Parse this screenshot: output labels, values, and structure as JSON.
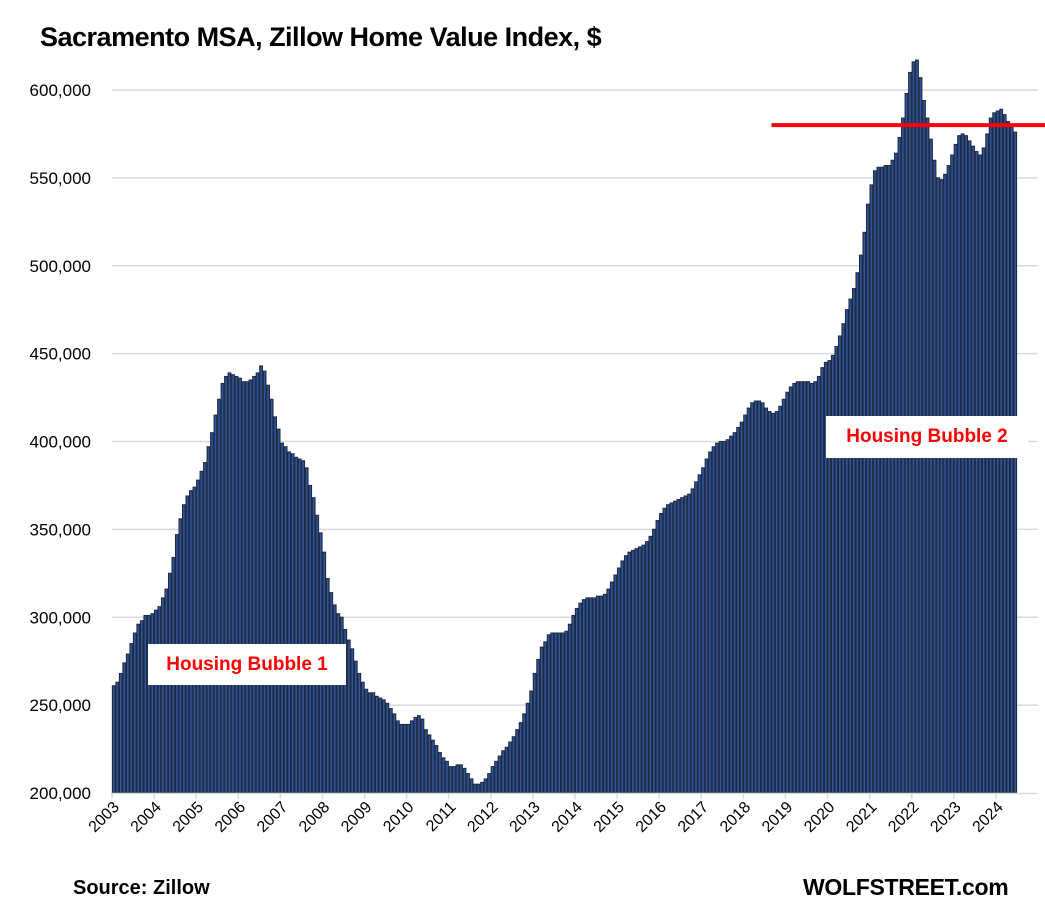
{
  "chart_data": {
    "type": "bar",
    "title": "Sacramento MSA, Zillow Home Value Index, $",
    "xlabel": "",
    "ylabel": "",
    "ylim": [
      200000,
      620000
    ],
    "grid": true,
    "yticks": [
      200000,
      250000,
      300000,
      350000,
      400000,
      450000,
      500000,
      550000,
      600000
    ],
    "ytick_labels": [
      "200,000",
      "250,000",
      "300,000",
      "350,000",
      "400,000",
      "450,000",
      "500,000",
      "550,000",
      "600,000"
    ],
    "xtick_labels": [
      "2003",
      "2004",
      "2005",
      "2006",
      "2007",
      "2008",
      "2009",
      "2010",
      "2011",
      "2012",
      "2013",
      "2014",
      "2015",
      "2016",
      "2017",
      "2018",
      "2019",
      "2020",
      "2021",
      "2022",
      "2023",
      "2024"
    ],
    "start": "2003-01",
    "frequency": "monthly",
    "series": [
      {
        "name": "Zillow Home Value Index",
        "color": "#2f5597",
        "edge_color": "#1f2a44",
        "values": [
          261000,
          263000,
          268000,
          274000,
          279000,
          285000,
          291000,
          296000,
          298000,
          301000,
          301000,
          302000,
          304000,
          306000,
          311000,
          316000,
          325000,
          334000,
          347000,
          356000,
          364000,
          369000,
          372000,
          374000,
          378000,
          383000,
          388000,
          397000,
          405000,
          415000,
          424000,
          433000,
          437000,
          439000,
          438000,
          437000,
          436000,
          434000,
          434000,
          435000,
          437000,
          439000,
          443000,
          440000,
          432000,
          424000,
          414000,
          407000,
          399000,
          397000,
          394000,
          393000,
          391000,
          390000,
          389000,
          385000,
          375000,
          368000,
          358000,
          348000,
          337000,
          322000,
          314000,
          307000,
          302000,
          300000,
          293000,
          287000,
          282000,
          275000,
          268000,
          263000,
          259000,
          257000,
          257000,
          255000,
          254000,
          253000,
          251000,
          248000,
          245000,
          241000,
          239000,
          239000,
          239000,
          241000,
          243000,
          244000,
          242000,
          236000,
          233000,
          230000,
          227000,
          223000,
          220000,
          218000,
          215000,
          215000,
          216000,
          216000,
          214000,
          211000,
          208000,
          205000,
          205000,
          206000,
          208000,
          211000,
          215000,
          218000,
          221000,
          224000,
          226000,
          229000,
          232000,
          236000,
          240000,
          245000,
          251000,
          258000,
          268000,
          276000,
          283000,
          286000,
          290000,
          291000,
          291000,
          291000,
          291000,
          292000,
          296000,
          301000,
          305000,
          308000,
          310000,
          311000,
          311000,
          311000,
          312000,
          312000,
          313000,
          316000,
          320000,
          324000,
          328000,
          332000,
          335000,
          337000,
          338000,
          339000,
          340000,
          341000,
          343000,
          346000,
          350000,
          355000,
          359000,
          362000,
          364000,
          365000,
          366000,
          367000,
          368000,
          369000,
          370000,
          373000,
          377000,
          381000,
          385000,
          390000,
          394000,
          397000,
          399000,
          400000,
          400000,
          401000,
          403000,
          405000,
          408000,
          411000,
          415000,
          419000,
          422000,
          423000,
          423000,
          422000,
          419000,
          417000,
          416000,
          417000,
          420000,
          424000,
          428000,
          431000,
          433000,
          434000,
          434000,
          434000,
          434000,
          433000,
          434000,
          437000,
          442000,
          445000,
          446000,
          449000,
          454000,
          460000,
          467000,
          475000,
          481000,
          487000,
          496000,
          506000,
          519000,
          535000,
          546000,
          554000,
          556000,
          556000,
          557000,
          557000,
          560000,
          564000,
          573000,
          584000,
          598000,
          610000,
          616000,
          617000,
          607000,
          594000,
          584000,
          572000,
          560000,
          550000,
          549000,
          552000,
          557000,
          563000,
          569000,
          574000,
          575000,
          574000,
          571000,
          568000,
          565000,
          563000,
          567000,
          575000,
          584000,
          587000,
          588000,
          589000,
          586000,
          582000,
          579000,
          576000
        ]
      }
    ],
    "reference_line": {
      "value": 580000,
      "from": "2019-01",
      "to": "2024-10",
      "color": "#ff0000"
    },
    "annotations": [
      {
        "text": "Housing Bubble 1",
        "color": "#ff0000"
      },
      {
        "text": "Housing Bubble 2",
        "color": "#ff0000"
      }
    ]
  },
  "footer": {
    "source": "Source: Zillow",
    "brand": "WOLFSTREET.com"
  },
  "colors": {
    "bar_fill": "#2f5597",
    "bar_edge": "#1f2a44",
    "grid": "#d9d9d9",
    "reference_line": "#ff0000",
    "annotation_text": "#ff0000"
  }
}
